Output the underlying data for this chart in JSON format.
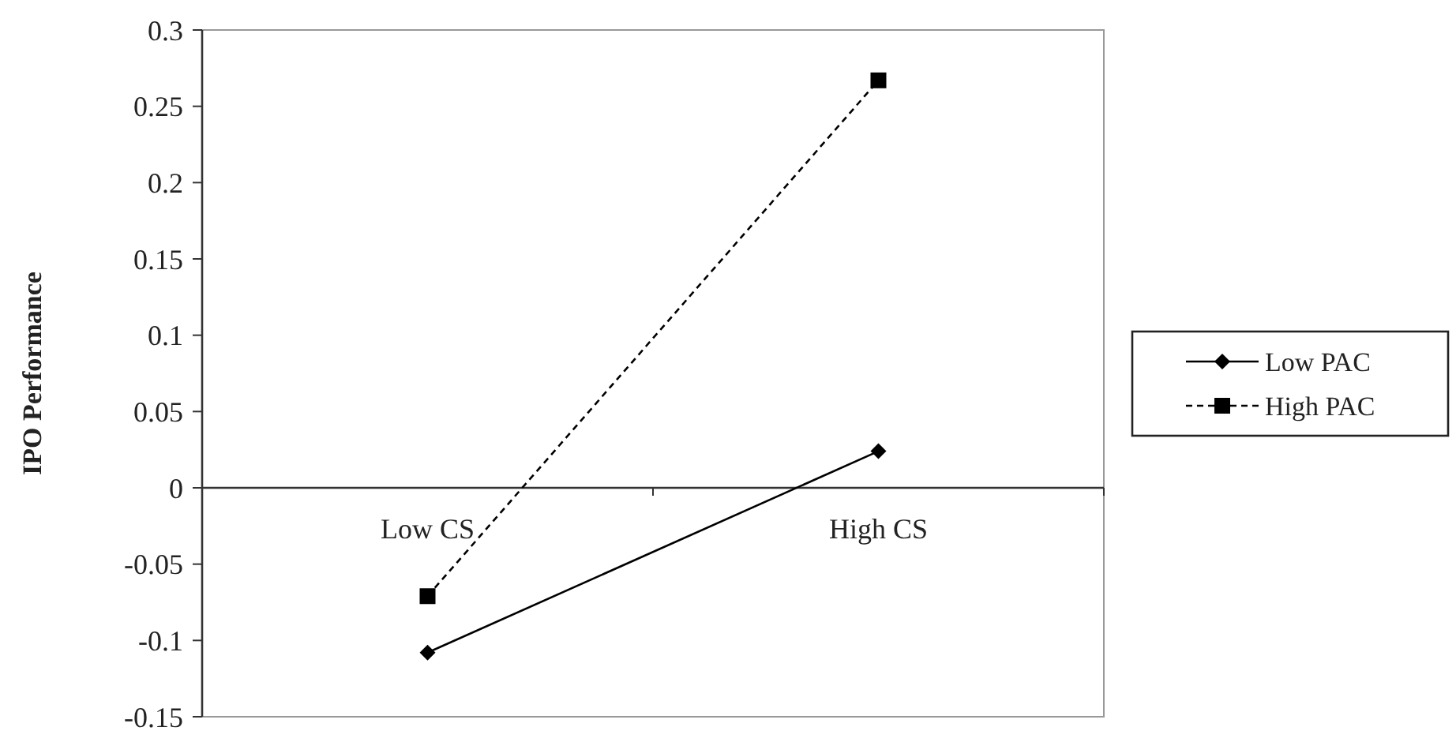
{
  "chart_data": {
    "type": "line",
    "ylabel": "IPO Performance",
    "categories": [
      "Low CS",
      "High CS"
    ],
    "series": [
      {
        "name": "Low PAC",
        "color": "#000000",
        "values": [
          -0.108,
          0.024
        ],
        "marker": "diamond",
        "line_style": "solid"
      },
      {
        "name": "High PAC",
        "color": "#000000",
        "values": [
          -0.071,
          0.267
        ],
        "marker": "square",
        "line_style": "dashed"
      }
    ],
    "ylim": [
      -0.15,
      0.3
    ],
    "yticks": [
      0.3,
      0.25,
      0.2,
      0.15,
      0.1,
      0.05,
      0,
      -0.05,
      -0.1,
      -0.15
    ],
    "grid": false,
    "legend": "right"
  }
}
